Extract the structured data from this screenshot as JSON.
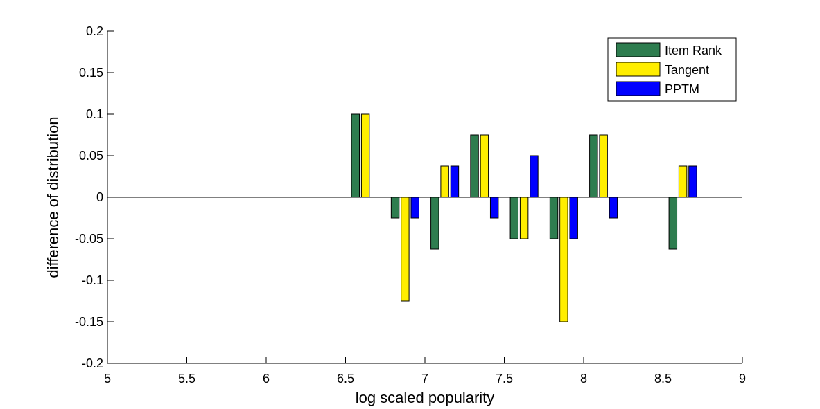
{
  "chart_data": {
    "type": "bar",
    "title": "",
    "xlabel": "log scaled popularity",
    "ylabel": "difference of distribution",
    "xlim": [
      5,
      9
    ],
    "ylim": [
      -0.2,
      0.2
    ],
    "xticks": [
      "5",
      "5.5",
      "6",
      "6.5",
      "7",
      "7.5",
      "8",
      "8.5",
      "9"
    ],
    "yticks": [
      "0.2",
      "0.15",
      "0.1",
      "0.05",
      "0",
      "-0.05",
      "-0.1",
      "-0.15",
      "-0.2"
    ],
    "grid": false,
    "legend_position": "top-right",
    "x": [
      6.625,
      6.875,
      7.125,
      7.375,
      7.625,
      7.875,
      8.125,
      8.375,
      8.625
    ],
    "series": [
      {
        "name": "Item Rank",
        "color": "#2e7d4f",
        "values": [
          0.1,
          -0.025,
          -0.0625,
          0.075,
          -0.05,
          -0.05,
          0.075,
          0,
          -0.0625
        ]
      },
      {
        "name": "Tangent",
        "color": "#ffee00",
        "values": [
          0.1,
          -0.125,
          0.0375,
          0.075,
          -0.05,
          -0.15,
          0.075,
          0,
          0.0375
        ]
      },
      {
        "name": "PPTM",
        "color": "#0000ff",
        "values": [
          0,
          -0.025,
          0.0375,
          -0.025,
          0.05,
          -0.05,
          -0.025,
          0,
          0.0375
        ]
      }
    ]
  }
}
